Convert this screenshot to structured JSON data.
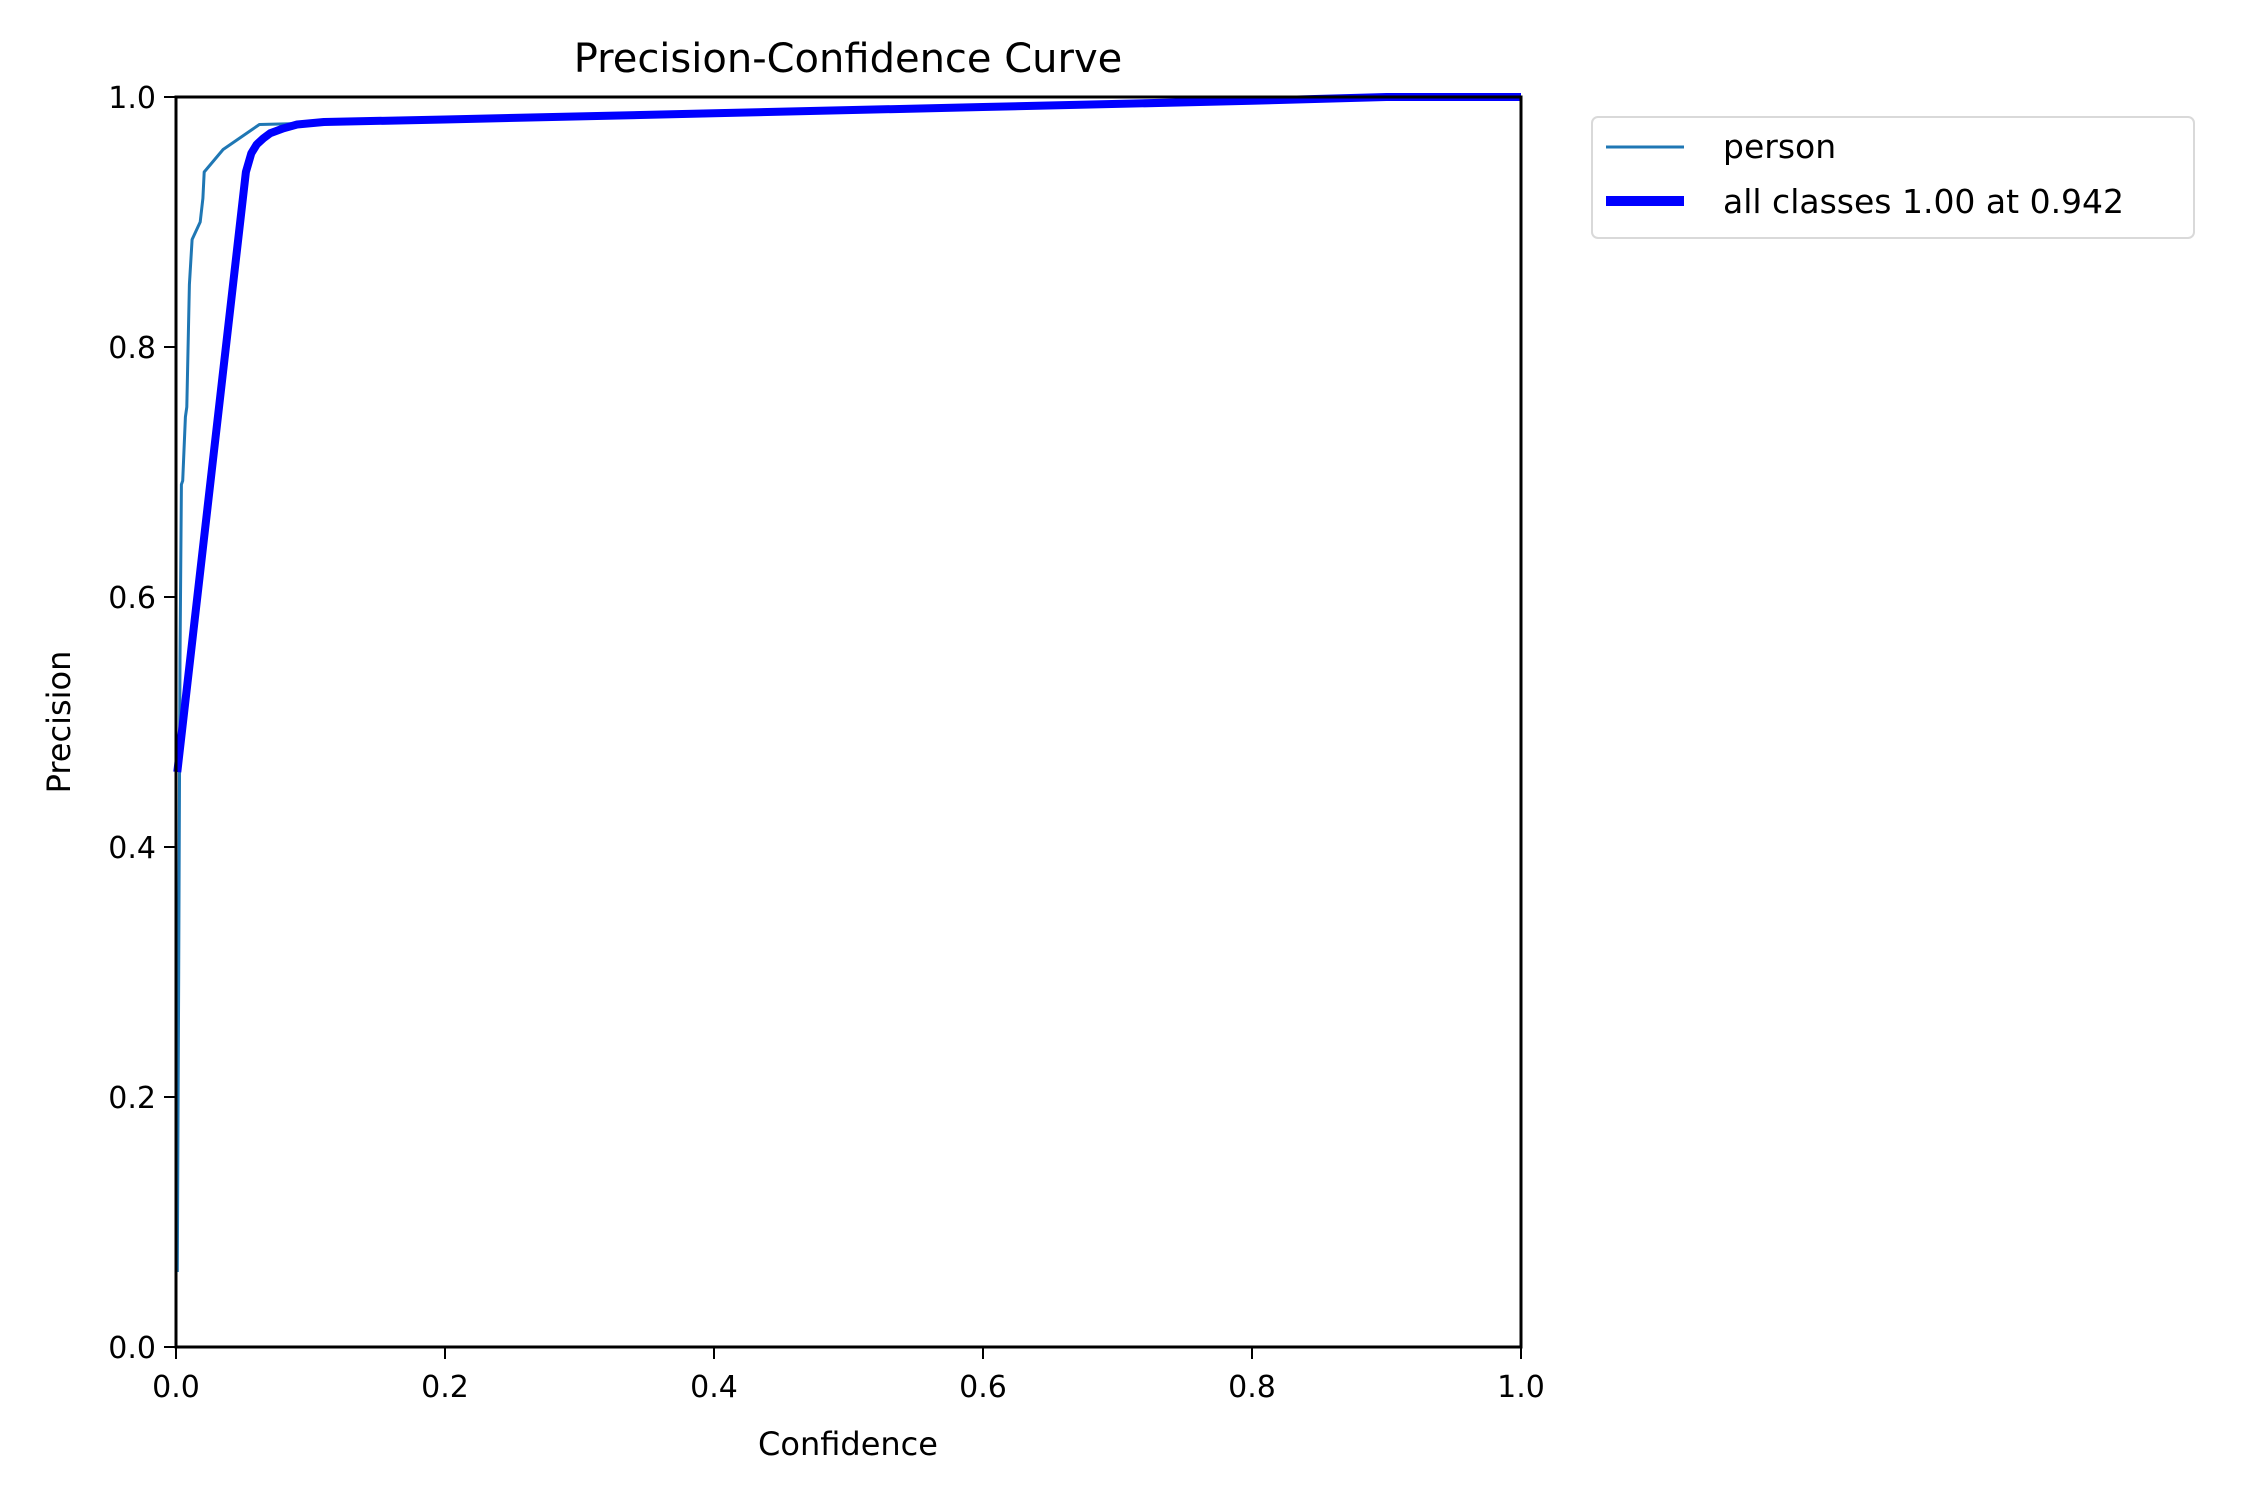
{
  "chart_data": {
    "type": "line",
    "title": "Precision-Confidence Curve",
    "xlabel": "Confidence",
    "ylabel": "Precision",
    "xlim": [
      0,
      1
    ],
    "ylim": [
      0,
      1
    ],
    "xticks": [
      "0.0",
      "0.2",
      "0.4",
      "0.6",
      "0.8",
      "1.0"
    ],
    "yticks": [
      "0.0",
      "0.2",
      "0.4",
      "0.6",
      "0.8",
      "1.0"
    ],
    "grid": false,
    "legend_position": "outside-top-right",
    "series": [
      {
        "name": "person",
        "color": "#1f77b4",
        "x": [
          0.001,
          0.002,
          0.003,
          0.004,
          0.005,
          0.007,
          0.008,
          0.01,
          0.012,
          0.018,
          0.02,
          0.021,
          0.035,
          0.062,
          0.1,
          0.2,
          0.4,
          0.6,
          0.8,
          0.9,
          1.0
        ],
        "y": [
          0.06,
          0.3,
          0.55,
          0.69,
          0.693,
          0.744,
          0.752,
          0.85,
          0.886,
          0.9,
          0.919,
          0.94,
          0.958,
          0.978,
          0.979,
          0.982,
          0.987,
          0.992,
          0.997,
          1.0,
          1.0
        ]
      },
      {
        "name": "all classes 1.00 at 0.942",
        "color": "#0000ff",
        "x": [
          0.001,
          0.052,
          0.056,
          0.06,
          0.065,
          0.07,
          0.08,
          0.09,
          0.11,
          0.2,
          0.4,
          0.6,
          0.8,
          0.9,
          1.0
        ],
        "y": [
          0.46,
          0.94,
          0.955,
          0.962,
          0.967,
          0.971,
          0.975,
          0.978,
          0.98,
          0.982,
          0.987,
          0.992,
          0.997,
          1.0,
          1.0
        ]
      }
    ]
  }
}
